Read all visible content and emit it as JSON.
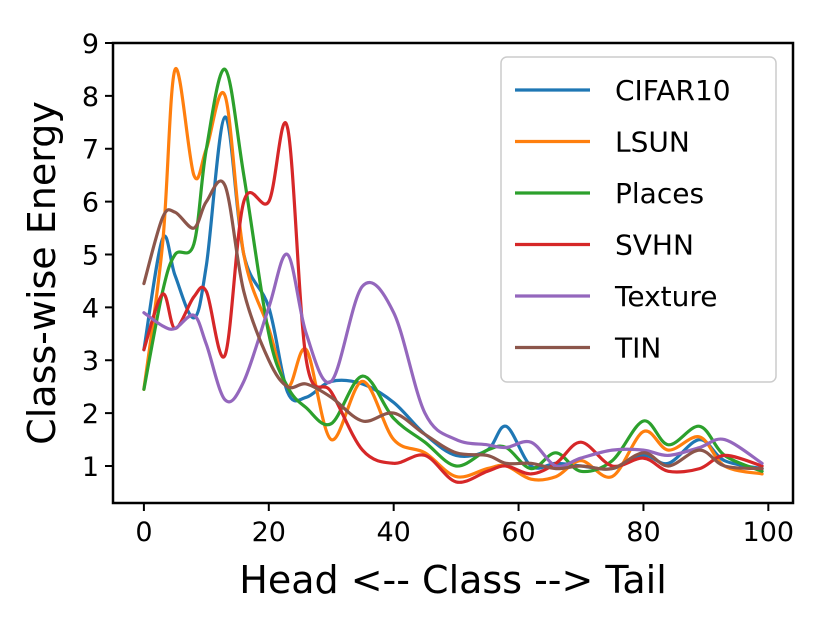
{
  "chart_data": {
    "type": "line",
    "xlabel": "Head <-- Class --> Tail",
    "ylabel": "Class-wise Energy",
    "xlim": [
      -4.95,
      103.95
    ],
    "ylim": [
      0.3,
      9.0
    ],
    "x_ticks": [
      0,
      20,
      40,
      60,
      80,
      100
    ],
    "y_ticks": [
      1,
      2,
      3,
      4,
      5,
      6,
      7,
      8,
      9
    ],
    "grid": false,
    "legend_position": "top-right",
    "x": [
      0,
      3,
      5,
      8,
      10,
      13,
      16,
      20,
      23,
      26,
      30,
      35,
      40,
      45,
      50,
      55,
      58,
      62,
      66,
      70,
      75,
      80,
      84,
      89,
      93,
      99
    ],
    "series": [
      {
        "name": "CIFAR10",
        "color": "#1f77b4",
        "values": [
          3.2,
          5.3,
          4.6,
          3.8,
          4.8,
          7.6,
          5.0,
          4.0,
          2.4,
          2.3,
          2.6,
          2.55,
          2.2,
          1.6,
          1.2,
          1.3,
          1.75,
          1.0,
          1.05,
          1.0,
          0.95,
          1.2,
          1.05,
          1.5,
          1.1,
          0.95
        ]
      },
      {
        "name": "LSUN",
        "color": "#ff7f0e",
        "values": [
          2.45,
          5.2,
          8.5,
          6.5,
          7.0,
          8.0,
          5.0,
          3.6,
          2.5,
          3.2,
          1.5,
          2.6,
          1.5,
          1.25,
          0.8,
          0.95,
          1.0,
          0.75,
          0.8,
          1.1,
          0.8,
          1.65,
          1.3,
          1.55,
          1.0,
          0.85
        ]
      },
      {
        "name": "Places",
        "color": "#2ca02c",
        "values": [
          2.45,
          4.3,
          5.0,
          5.2,
          7.0,
          8.5,
          6.5,
          3.5,
          2.5,
          2.1,
          1.8,
          2.7,
          1.9,
          1.45,
          1.0,
          1.3,
          1.35,
          0.95,
          1.25,
          0.9,
          1.1,
          1.85,
          1.4,
          1.75,
          1.2,
          0.9
        ]
      },
      {
        "name": "SVHN",
        "color": "#d62728",
        "values": [
          3.2,
          4.25,
          3.6,
          4.2,
          4.3,
          3.1,
          6.0,
          6.0,
          7.4,
          3.0,
          2.4,
          1.3,
          1.05,
          1.2,
          0.7,
          0.9,
          1.0,
          0.85,
          1.05,
          1.45,
          1.0,
          1.15,
          0.9,
          0.95,
          1.2,
          1.0
        ]
      },
      {
        "name": "Texture",
        "color": "#9467bd",
        "values": [
          3.9,
          3.65,
          3.6,
          3.85,
          3.3,
          2.25,
          2.6,
          4.0,
          5.0,
          3.5,
          2.6,
          4.4,
          3.9,
          2.0,
          1.5,
          1.4,
          1.35,
          1.45,
          1.0,
          1.15,
          1.3,
          1.3,
          1.2,
          1.35,
          1.5,
          1.05
        ]
      },
      {
        "name": "TIN",
        "color": "#8c564b",
        "values": [
          4.45,
          5.7,
          5.8,
          5.5,
          6.0,
          6.3,
          4.3,
          3.0,
          2.5,
          2.55,
          2.3,
          1.85,
          2.0,
          1.6,
          1.25,
          1.2,
          1.05,
          1.05,
          0.95,
          1.0,
          0.95,
          1.25,
          1.0,
          1.3,
          1.0,
          0.95
        ]
      }
    ]
  }
}
